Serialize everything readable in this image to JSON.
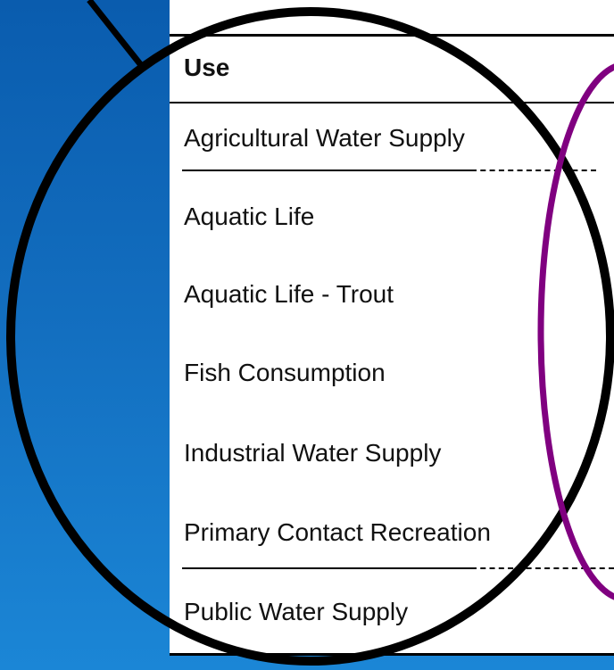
{
  "table": {
    "header": "Use",
    "rows": [
      "Agricultural Water Supply",
      "Aquatic Life",
      "Aquatic Life - Trout",
      "Fish Consumption",
      "Industrial Water Supply",
      "Primary Contact Recreation",
      "Public Water Supply"
    ]
  }
}
